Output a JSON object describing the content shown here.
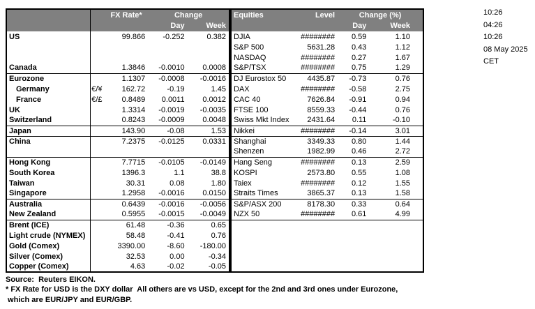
{
  "colors": {
    "header_bg": "#808080",
    "header_text": "#ffffff",
    "border": "#000000"
  },
  "fx_table": {
    "header": {
      "rate": "FX Rate*",
      "change": "Change",
      "day": "Day",
      "week": "Week"
    },
    "rows": [
      {
        "label": "US",
        "symbol": "",
        "rate": "99.866",
        "day": "-0.252",
        "week": "0.382"
      },
      {
        "label": "",
        "symbol": "",
        "rate": "",
        "day": "",
        "week": ""
      },
      {
        "label": "",
        "symbol": "",
        "rate": "",
        "day": "",
        "week": ""
      },
      {
        "label": "Canada",
        "symbol": "",
        "rate": "1.3846",
        "day": "-0.0010",
        "week": "0.0008",
        "section_end": true
      },
      {
        "label": "Eurozone",
        "symbol": "",
        "rate": "1.1307",
        "day": "-0.0008",
        "week": "-0.0016"
      },
      {
        "label": "Germany",
        "symbol": "€/¥",
        "rate": "162.72",
        "day": "-0.19",
        "week": "1.45",
        "indent": true
      },
      {
        "label": "France",
        "symbol": "€/£",
        "rate": "0.8489",
        "day": "0.0011",
        "week": "0.0012",
        "indent": true
      },
      {
        "label": "UK",
        "symbol": "",
        "rate": "1.3314",
        "day": "-0.0019",
        "week": "-0.0035"
      },
      {
        "label": "Switzerland",
        "symbol": "",
        "rate": "0.8243",
        "day": "-0.0009",
        "week": "0.0048",
        "section_end": true
      },
      {
        "label": "Japan",
        "symbol": "",
        "rate": "143.90",
        "day": "-0.08",
        "week": "1.53",
        "section_end": true
      },
      {
        "label": "China",
        "symbol": "",
        "rate": "7.2375",
        "day": "-0.0125",
        "week": "0.0331"
      },
      {
        "label": "",
        "symbol": "",
        "rate": "",
        "day": "",
        "week": "",
        "section_end": true
      },
      {
        "label": "Hong Kong",
        "symbol": "",
        "rate": "7.7715",
        "day": "-0.0105",
        "week": "-0.0149"
      },
      {
        "label": "South Korea",
        "symbol": "",
        "rate": "1396.3",
        "day": "1.1",
        "week": "38.8"
      },
      {
        "label": "Taiwan",
        "symbol": "",
        "rate": "30.31",
        "day": "0.08",
        "week": "1.80"
      },
      {
        "label": "Singapore",
        "symbol": "",
        "rate": "1.2958",
        "day": "-0.0016",
        "week": "0.0150",
        "section_end": true
      },
      {
        "label": "Australia",
        "symbol": "",
        "rate": "0.6439",
        "day": "-0.0016",
        "week": "-0.0056"
      },
      {
        "label": "New Zealand",
        "symbol": "",
        "rate": "0.5955",
        "day": "-0.0015",
        "week": "-0.0049",
        "section_end": true
      },
      {
        "label": "Brent (ICE)",
        "symbol": "",
        "rate": "61.48",
        "day": "-0.36",
        "week": "0.65"
      },
      {
        "label": "Light crude (NYMEX)",
        "symbol": "",
        "rate": "58.48",
        "day": "-0.41",
        "week": "0.76"
      },
      {
        "label": "Gold (Comex)",
        "symbol": "",
        "rate": "3390.00",
        "day": "-8.60",
        "week": "-180.00"
      },
      {
        "label": "Silver (Comex)",
        "symbol": "",
        "rate": "32.53",
        "day": "0.00",
        "week": "-0.34"
      },
      {
        "label": "Copper (Comex)",
        "symbol": "",
        "rate": "4.63",
        "day": "-0.02",
        "week": "-0.05"
      }
    ]
  },
  "equities_table": {
    "header": {
      "name": "Equities",
      "level": "Level",
      "change": "Change (%)",
      "day": "Day",
      "week": "Week"
    },
    "rows": [
      {
        "name": "DJIA",
        "level": "########",
        "day": "0.59",
        "week": "1.10"
      },
      {
        "name": "S&P 500",
        "level": "5631.28",
        "day": "0.43",
        "week": "1.12"
      },
      {
        "name": "NASDAQ",
        "level": "########",
        "day": "0.27",
        "week": "1.67"
      },
      {
        "name": "S&P/TSX",
        "level": "########",
        "day": "0.75",
        "week": "1.29",
        "section_end": true
      },
      {
        "name": "DJ Eurostox 50",
        "level": "4435.87",
        "day": "-0.73",
        "week": "0.76"
      },
      {
        "name": "DAX",
        "level": "########",
        "day": "-0.58",
        "week": "2.75"
      },
      {
        "name": "CAC 40",
        "level": "7626.84",
        "day": "-0.91",
        "week": "0.94"
      },
      {
        "name": "FTSE 100",
        "level": "8559.33",
        "day": "-0.44",
        "week": "0.76"
      },
      {
        "name": "Swiss Mkt Index",
        "level": "2431.64",
        "day": "0.11",
        "week": "-0.10",
        "section_end": true
      },
      {
        "name": "Nikkei",
        "level": "########",
        "day": "-0.14",
        "week": "3.01",
        "section_end": true
      },
      {
        "name": "Shanghai",
        "level": "3349.33",
        "day": "0.80",
        "week": "1.44"
      },
      {
        "name": "Shenzen",
        "level": "1982.99",
        "day": "0.46",
        "week": "2.72",
        "section_end": true
      },
      {
        "name": "Hang Seng",
        "level": "########",
        "day": "0.13",
        "week": "2.59"
      },
      {
        "name": "KOSPI",
        "level": "2573.80",
        "day": "0.55",
        "week": "1.08"
      },
      {
        "name": "Taiex",
        "level": "########",
        "day": "0.12",
        "week": "1.55"
      },
      {
        "name": "Straits Times",
        "level": "3865.37",
        "day": "0.13",
        "week": "1.58",
        "section_end": true
      },
      {
        "name": "S&P/ASX  200",
        "level": "8178.30",
        "day": "0.33",
        "week": "0.64"
      },
      {
        "name": "NZX 50",
        "level": "########",
        "day": "0.61",
        "week": "4.99",
        "section_end": true
      }
    ]
  },
  "timestamps": [
    "10:26",
    "04:26",
    "10:26",
    "08 May 2025",
    "CET"
  ],
  "footer": {
    "lines": [
      "Source:  Reuters EIKON.",
      "* FX Rate for USD is the DXY dollar  All others are vs USD, except for the 2nd and 3rd ones under Eurozone,",
      " which are EUR/JPY and EUR/GBP."
    ]
  }
}
